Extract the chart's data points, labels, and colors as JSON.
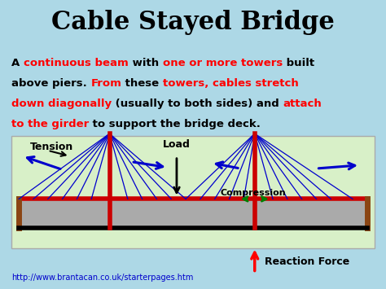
{
  "bg_color": "#add8e6",
  "title": "Cable Stayed Bridge",
  "title_fontsize": 22,
  "url": "http://www.brantacan.co.uk/starterpages.htm",
  "diagram_bg": "#d8f0c8",
  "cable_color": "#0000cc",
  "tower_color": "#cc0000",
  "lines_data": [
    [
      {
        "text": "A ",
        "color": "black"
      },
      {
        "text": "continuous beam",
        "color": "red"
      },
      {
        "text": " with ",
        "color": "black"
      },
      {
        "text": "one or more towers",
        "color": "red"
      },
      {
        "text": " built",
        "color": "black"
      }
    ],
    [
      {
        "text": "above piers. ",
        "color": "black"
      },
      {
        "text": "From",
        "color": "red"
      },
      {
        "text": " these ",
        "color": "black"
      },
      {
        "text": "towers, cables stretch",
        "color": "red"
      }
    ],
    [
      {
        "text": "down diagonally",
        "color": "red"
      },
      {
        "text": " (usually to both sides) and ",
        "color": "black"
      },
      {
        "text": "attach",
        "color": "red"
      }
    ],
    [
      {
        "text": "to the girder",
        "color": "red"
      },
      {
        "text": " to support the bridge deck.",
        "color": "black"
      }
    ]
  ]
}
